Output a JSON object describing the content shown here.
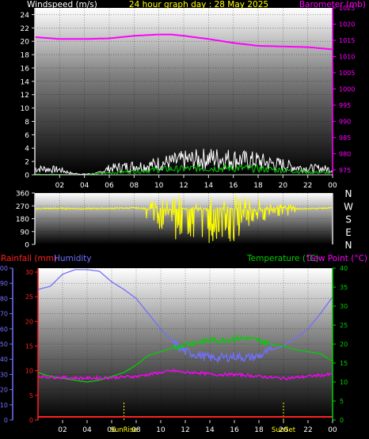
{
  "chart_data": [
    {
      "type": "line",
      "title": "24 hour graph day : 28 May 2025",
      "ylabel_left": "Windspeed (m/s)",
      "ylabel_right": "Barometer (mb)",
      "x_ticks": [
        "02",
        "04",
        "06",
        "08",
        "10",
        "12",
        "14",
        "16",
        "18",
        "20",
        "22",
        "00"
      ],
      "left_ticks": [
        "0",
        "2",
        "4",
        "6",
        "8",
        "10",
        "12",
        "14",
        "16",
        "18",
        "20",
        "22",
        "24"
      ],
      "right_ticks": [
        "975",
        "980",
        "985",
        "990",
        "995",
        "1000",
        "1005",
        "1010",
        "1015",
        "1020",
        "1025"
      ],
      "ylim_left": [
        0,
        25
      ],
      "ylim_right": [
        973.5,
        1025
      ],
      "grid": true,
      "series": [
        {
          "name": "Barometer",
          "axis": "right",
          "color": "#ff00ff",
          "hours": [
            0,
            2,
            4,
            6,
            8,
            10,
            11,
            12,
            14,
            16,
            18,
            20,
            22,
            24
          ],
          "values": [
            1016.0,
            1015.4,
            1015.4,
            1015.6,
            1016.4,
            1016.8,
            1016.8,
            1016.4,
            1015.4,
            1014.2,
            1013.3,
            1013.1,
            1012.9,
            1012.2
          ]
        },
        {
          "name": "Wind gust",
          "axis": "left",
          "color": "#ffffff",
          "hours": [
            0,
            2,
            3,
            4,
            5,
            6,
            7,
            8,
            9,
            10,
            11,
            12,
            13,
            14,
            15,
            16,
            17,
            18,
            19,
            20,
            21,
            22,
            23,
            24
          ],
          "values": [
            1.0,
            0.8,
            0.2,
            0.1,
            0.2,
            1.0,
            1.2,
            1.4,
            1.4,
            1.8,
            2.0,
            2.3,
            2.4,
            2.6,
            2.6,
            2.5,
            2.3,
            2.2,
            1.8,
            1.6,
            1.2,
            1.0,
            1.0,
            0.8
          ]
        },
        {
          "name": "Wind average",
          "axis": "left",
          "color": "#00d000",
          "hours": [
            0,
            4,
            6,
            8,
            10,
            12,
            14,
            16,
            18,
            20,
            22,
            24
          ],
          "values": [
            0.1,
            0.0,
            0.3,
            0.5,
            0.8,
            0.9,
            1.0,
            1.0,
            0.9,
            0.7,
            0.4,
            0.3
          ]
        }
      ]
    },
    {
      "type": "line",
      "ylabel_right": [
        "N",
        "W",
        "S",
        "E",
        "N"
      ],
      "left_ticks": [
        "0",
        "90",
        "180",
        "270",
        "360"
      ],
      "ylim": [
        0,
        360
      ],
      "grid": true,
      "series": [
        {
          "name": "Wind direction",
          "color": "#ffff00",
          "hours": [
            0,
            2,
            4,
            6,
            8,
            9,
            10,
            11,
            12,
            13,
            14,
            15,
            16,
            17,
            18,
            19,
            20,
            21,
            22,
            24
          ],
          "values": [
            250,
            252,
            250,
            252,
            255,
            250,
            250,
            245,
            250,
            250,
            248,
            252,
            250,
            250,
            250,
            252,
            255,
            250,
            250,
            255
          ],
          "spread_hours": [
            9,
            10,
            11,
            12,
            13,
            14,
            15,
            16,
            17,
            18,
            19,
            20,
            21
          ],
          "spread_low": [
            180,
            110,
            50,
            0,
            20,
            0,
            30,
            10,
            80,
            120,
            200,
            190,
            220
          ],
          "spread_high": [
            300,
            320,
            350,
            360,
            360,
            360,
            360,
            360,
            340,
            320,
            300,
            300,
            280
          ]
        }
      ]
    },
    {
      "type": "line",
      "ylabel_left": "Rainfall (mm)",
      "ylabel_left2": "Humidity",
      "ylabel_right": "Temperature (°C)",
      "ylabel_right2": "Dew Point (°C)",
      "x_ticks": [
        "02",
        "04",
        "06",
        "08",
        "10",
        "12",
        "14",
        "16",
        "18",
        "20",
        "22",
        "00"
      ],
      "markers": [
        {
          "label": "SunRise",
          "hour": 7.0
        },
        {
          "label": "SunSet",
          "hour": 20.0
        }
      ],
      "humidity_ticks": [
        "0",
        "10",
        "20",
        "30",
        "40",
        "50",
        "60",
        "70",
        "80",
        "90",
        "100"
      ],
      "rain_ticks": [
        "0",
        "5",
        "10",
        "15",
        "20",
        "25",
        "30"
      ],
      "temp_ticks": [
        "0",
        "5",
        "10",
        "15",
        "20",
        "25",
        "30",
        "35",
        "40"
      ],
      "ylim_humidity": [
        0,
        100
      ],
      "ylim_temp": [
        0,
        40
      ],
      "grid": true,
      "series": [
        {
          "name": "Humidity",
          "axis": "humidity",
          "color": "#7070ff",
          "hours": [
            0,
            1,
            2,
            3,
            4,
            5,
            6,
            7,
            8,
            9,
            10,
            11,
            12,
            13,
            14,
            15,
            16,
            17,
            18,
            19,
            20,
            21,
            22,
            23,
            24
          ],
          "values": [
            86,
            88,
            96,
            99,
            99,
            98,
            91,
            86,
            80,
            70,
            60,
            51,
            45,
            43,
            41,
            41,
            42,
            41,
            42,
            46,
            49,
            54,
            60,
            70,
            81
          ]
        },
        {
          "name": "Temperature",
          "axis": "temp",
          "color": "#00d000",
          "hours": [
            0,
            1,
            2,
            3,
            4,
            5,
            6,
            7,
            8,
            9,
            10,
            11,
            12,
            13,
            14,
            15,
            16,
            17,
            18,
            19,
            20,
            21,
            22,
            23,
            24
          ],
          "values": [
            12.5,
            11.5,
            11.0,
            10.5,
            10.0,
            10.5,
            11.5,
            12.5,
            14.5,
            17.0,
            18.0,
            19.0,
            20.0,
            20.5,
            21.0,
            21.0,
            21.5,
            21.5,
            21.0,
            20.0,
            19.5,
            18.5,
            18.0,
            17.5,
            15.5
          ]
        },
        {
          "name": "Dew Point",
          "axis": "temp",
          "color": "#ff00ff",
          "hours": [
            0,
            2,
            4,
            6,
            8,
            9,
            10,
            11,
            12,
            13,
            14,
            15,
            16,
            17,
            18,
            19,
            20,
            21,
            22,
            23,
            24
          ],
          "values": [
            11.5,
            11.2,
            11.0,
            11.2,
            11.5,
            12.0,
            12.5,
            13.0,
            12.5,
            12.5,
            12.0,
            12.0,
            12.0,
            11.8,
            11.5,
            11.2,
            11.0,
            11.2,
            11.5,
            11.8,
            12.0
          ]
        },
        {
          "name": "Rainfall",
          "axis": "rain",
          "color": "#ff2020",
          "hours": [
            0,
            24
          ],
          "values": [
            0,
            0
          ]
        }
      ]
    }
  ]
}
